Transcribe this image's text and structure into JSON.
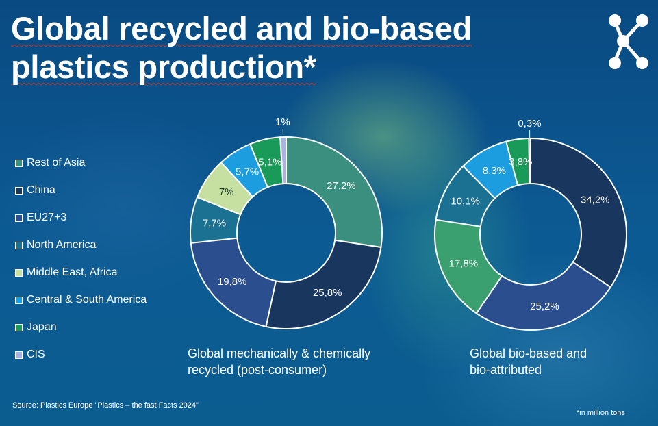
{
  "title": {
    "line1": "Global recycled and bio-based",
    "line2": "plastics production*"
  },
  "logo": {
    "icon": "network-nodes-icon"
  },
  "legend": [
    {
      "label": "Rest of Asia",
      "color": "#3a8f7e"
    },
    {
      "label": "China",
      "color": "#18365e"
    },
    {
      "label": "EU27+3",
      "color": "#2b4f8e"
    },
    {
      "label": "North America",
      "color": "#1a7192"
    },
    {
      "label": "Middle East, Africa",
      "color": "#c5e0a0"
    },
    {
      "label": "Central & South America",
      "color": "#1b9de0"
    },
    {
      "label": "Japan",
      "color": "#1a9a58"
    },
    {
      "label": "CIS",
      "color": "#a9b4e0"
    }
  ],
  "chart_data": [
    {
      "type": "pie",
      "subtype": "donut",
      "caption_line1": "Global mechanically & chemically",
      "caption_line2": "recycled (post-consumer)",
      "slices": [
        {
          "category": "Rest of Asia",
          "value": 27.2,
          "label": "27,2%",
          "color": "#3a8f7e"
        },
        {
          "category": "China",
          "value": 25.8,
          "label": "25,8%",
          "color": "#18365e"
        },
        {
          "category": "EU27+3",
          "value": 19.8,
          "label": "19,8%",
          "color": "#2b4f8e"
        },
        {
          "category": "North America",
          "value": 7.7,
          "label": "7,7%",
          "color": "#1a7192"
        },
        {
          "category": "Middle East, Africa",
          "value": 7.0,
          "label": "7%",
          "color": "#c5e0a0"
        },
        {
          "category": "Central & South America",
          "value": 5.7,
          "label": "5,7%",
          "color": "#1b9de0"
        },
        {
          "category": "Japan",
          "value": 5.1,
          "label": "5,1%",
          "color": "#1a9a58"
        },
        {
          "category": "CIS",
          "value": 1.0,
          "label": "1%",
          "color": "#a9b4e0"
        }
      ]
    },
    {
      "type": "pie",
      "subtype": "donut",
      "caption_line1": "Global bio-based and",
      "caption_line2": "bio-attributed",
      "slices": [
        {
          "category": "China",
          "value": 34.2,
          "label": "34,2%",
          "color": "#18365e"
        },
        {
          "category": "EU27+3",
          "value": 25.2,
          "label": "25,2%",
          "color": "#2b4f8e"
        },
        {
          "category": "Rest of Asia",
          "value": 17.8,
          "label": "17,8%",
          "color": "#3aa070"
        },
        {
          "category": "North America",
          "value": 10.1,
          "label": "10,1%",
          "color": "#1a7192"
        },
        {
          "category": "Central & South America",
          "value": 8.3,
          "label": "8,3%",
          "color": "#1b9de0"
        },
        {
          "category": "Japan",
          "value": 3.8,
          "label": "3,8%",
          "color": "#1a9a58"
        },
        {
          "category": "CIS",
          "value": 0.3,
          "label": "0,3%",
          "color": "#a9b4e0"
        }
      ]
    }
  ],
  "source": "Source: Plastics Europe \"Plastics – the fast Facts 2024\"",
  "footnote": "*in million tons"
}
